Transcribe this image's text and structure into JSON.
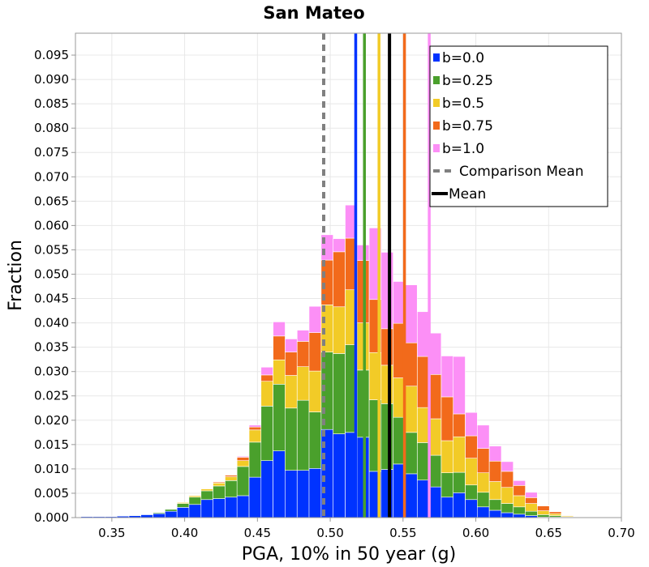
{
  "chart_data": {
    "type": "bar",
    "stacked": true,
    "title": "San Mateo",
    "xlabel": "PGA, 10% in 50 year (g)",
    "ylabel": "Fraction",
    "xlim": [
      0.325,
      0.7
    ],
    "ylim": [
      0.0,
      0.0995
    ],
    "x_ticks": [
      "0.35",
      "0.40",
      "0.45",
      "0.50",
      "0.55",
      "0.60",
      "0.65",
      "0.70"
    ],
    "y_ticks": [
      "0.000",
      "0.005",
      "0.010",
      "0.015",
      "0.020",
      "0.025",
      "0.030",
      "0.035",
      "0.040",
      "0.045",
      "0.050",
      "0.055",
      "0.060",
      "0.065",
      "0.070",
      "0.075",
      "0.080",
      "0.085",
      "0.090",
      "0.095"
    ],
    "grid": true,
    "legend_position": "top-right",
    "bin_width": 0.00825,
    "x": [
      0.3329,
      0.3411,
      0.3494,
      0.3576,
      0.3659,
      0.3741,
      0.3824,
      0.3906,
      0.3989,
      0.4071,
      0.4154,
      0.4236,
      0.4319,
      0.4401,
      0.4484,
      0.4566,
      0.4649,
      0.4731,
      0.4814,
      0.4896,
      0.4979,
      0.5061,
      0.5144,
      0.5226,
      0.5309,
      0.5391,
      0.5474,
      0.5556,
      0.5639,
      0.5721,
      0.5804,
      0.5886,
      0.5969,
      0.6051,
      0.6134,
      0.6216,
      0.6299,
      0.6381,
      0.6464,
      0.6546,
      0.6629,
      0.6711,
      0.6794,
      0.6876
    ],
    "series": [
      {
        "name": "b=0.0",
        "color": "#0033ff",
        "values": [
          0.0002,
          0.0002,
          0.0002,
          0.0003,
          0.0004,
          0.0006,
          0.0008,
          0.0013,
          0.0021,
          0.0027,
          0.0037,
          0.0039,
          0.0042,
          0.0045,
          0.0083,
          0.0117,
          0.0137,
          0.0097,
          0.0097,
          0.0101,
          0.0181,
          0.0172,
          0.0175,
          0.0165,
          0.0095,
          0.0099,
          0.011,
          0.009,
          0.0077,
          0.0063,
          0.0042,
          0.0051,
          0.0037,
          0.0022,
          0.0015,
          0.001,
          0.0007,
          0.0004,
          0.0001,
          0.0001,
          0.0001,
          0.0,
          0.0,
          0.0
        ]
      },
      {
        "name": "b=0.25",
        "color": "#4aa02c",
        "values": [
          0.0,
          0.0,
          0.0,
          0.0,
          0.0001,
          0.0001,
          0.0002,
          0.0004,
          0.0008,
          0.0015,
          0.0018,
          0.0026,
          0.0034,
          0.006,
          0.0072,
          0.0112,
          0.0137,
          0.0128,
          0.0144,
          0.0116,
          0.0159,
          0.0165,
          0.018,
          0.0138,
          0.0147,
          0.0135,
          0.0096,
          0.0085,
          0.0077,
          0.0065,
          0.005,
          0.0042,
          0.003,
          0.003,
          0.0022,
          0.0019,
          0.0015,
          0.0009,
          0.0005,
          0.0003,
          0.0001,
          0.0,
          0.0,
          0.0
        ]
      },
      {
        "name": "b=0.5",
        "color": "#f2cb27",
        "values": [
          0.0,
          0.0,
          0.0,
          0.0,
          0.0,
          0.0,
          0.0,
          0.0001,
          0.0002,
          0.0003,
          0.0004,
          0.0006,
          0.0008,
          0.0012,
          0.0025,
          0.0051,
          0.005,
          0.0067,
          0.0069,
          0.0084,
          0.0097,
          0.0096,
          0.0113,
          0.0097,
          0.0097,
          0.0079,
          0.0081,
          0.0095,
          0.0072,
          0.0075,
          0.0066,
          0.0073,
          0.0055,
          0.004,
          0.0037,
          0.0033,
          0.0023,
          0.0016,
          0.0008,
          0.0004,
          0.0002,
          0.0,
          0.0,
          0.0
        ]
      },
      {
        "name": "b=0.75",
        "color": "#f26a1b",
        "values": [
          0.0,
          0.0,
          0.0,
          0.0,
          0.0,
          0.0,
          0.0,
          0.0,
          0.0,
          0.0001,
          0.0001,
          0.0002,
          0.0003,
          0.0007,
          0.0006,
          0.0013,
          0.0049,
          0.0048,
          0.0052,
          0.0079,
          0.0092,
          0.0113,
          0.0106,
          0.0128,
          0.0109,
          0.0075,
          0.0112,
          0.0089,
          0.0105,
          0.0091,
          0.009,
          0.0047,
          0.0046,
          0.005,
          0.0042,
          0.0033,
          0.0021,
          0.0012,
          0.001,
          0.0004,
          0.0001,
          0.0,
          0.0,
          0.0
        ]
      },
      {
        "name": "b=1.0",
        "color": "#fc8ff6",
        "values": [
          0.0,
          0.0,
          0.0,
          0.0,
          0.0,
          0.0,
          0.0,
          0.0,
          0.0,
          0.0,
          0.0,
          0.0,
          0.0,
          0.0002,
          0.0004,
          0.0016,
          0.0029,
          0.0027,
          0.0023,
          0.0054,
          0.0052,
          0.0027,
          0.0068,
          0.0032,
          0.0147,
          0.0157,
          0.0086,
          0.0119,
          0.0092,
          0.0085,
          0.0084,
          0.0118,
          0.0048,
          0.0048,
          0.0031,
          0.002,
          0.001,
          0.0011,
          0.0001,
          0.0001,
          0.0001,
          0.0,
          0.0,
          0.0
        ]
      }
    ],
    "reference_lines": [
      {
        "name": "Comparison Mean",
        "x": 0.4955,
        "color": "#808080",
        "style": "dashed",
        "in_legend": true
      },
      {
        "name": "Mean",
        "x": 0.5407,
        "color": "#000000",
        "style": "solid",
        "in_legend": true
      },
      {
        "name": "b=0.0",
        "x": 0.5175,
        "color": "#0033ff",
        "style": "solid",
        "in_legend": false
      },
      {
        "name": "b=0.25",
        "x": 0.5235,
        "color": "#4aa02c",
        "style": "solid",
        "in_legend": false
      },
      {
        "name": "b=0.5",
        "x": 0.5335,
        "color": "#f2cb27",
        "style": "solid",
        "in_legend": false
      },
      {
        "name": "b=0.75",
        "x": 0.551,
        "color": "#f26a1b",
        "style": "solid",
        "in_legend": false
      },
      {
        "name": "b=1.0",
        "x": 0.568,
        "color": "#fc8ff6",
        "style": "solid",
        "in_legend": false
      }
    ],
    "legend": [
      {
        "label": "b=0.0",
        "color": "#0033ff",
        "kind": "swatch"
      },
      {
        "label": "b=0.25",
        "color": "#4aa02c",
        "kind": "swatch"
      },
      {
        "label": "b=0.5",
        "color": "#f2cb27",
        "kind": "swatch"
      },
      {
        "label": "b=0.75",
        "color": "#f26a1b",
        "kind": "swatch"
      },
      {
        "label": "b=1.0",
        "color": "#fc8ff6",
        "kind": "swatch"
      },
      {
        "label": "Comparison Mean",
        "color": "#808080",
        "kind": "dashed-line"
      },
      {
        "label": "Mean",
        "color": "#000000",
        "kind": "solid-line"
      }
    ]
  }
}
